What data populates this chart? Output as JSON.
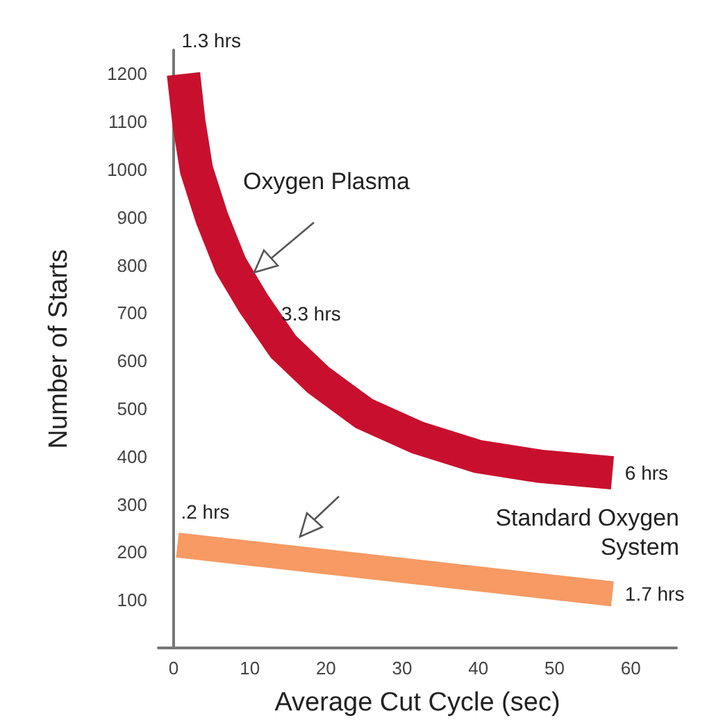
{
  "chart_data": {
    "type": "line",
    "xlabel": "Average Cut Cycle (sec)",
    "ylabel": "Number of Starts",
    "series": [
      {
        "name": "Oxygen Plasma",
        "color": "#c8102e",
        "x": [
          1.3,
          2,
          3,
          5,
          7.5,
          10.5,
          14.4,
          19,
          25,
          32,
          40,
          48,
          57.6
        ],
        "values": [
          1200,
          1100,
          1000,
          900,
          800,
          720,
          630,
          560,
          490,
          440,
          400,
          380,
          366
        ]
      },
      {
        "name": "Standard Oxygen System",
        "color": "#f79a63",
        "x": [
          0.5,
          57.6
        ],
        "values": [
          215,
          113
        ]
      }
    ],
    "annotations": [
      {
        "text": "1.3 hrs",
        "x": 1.3,
        "y": 1200
      },
      {
        "text": "3.3 hrs",
        "x": 14.4,
        "y": 630
      },
      {
        "text": "6 hrs",
        "x": 57.6,
        "y": 366
      },
      {
        "text": ".2 hrs",
        "x": 0.5,
        "y": 215
      },
      {
        "text": "1.7 hrs",
        "x": 57.6,
        "y": 113
      }
    ],
    "xlim": [
      -2,
      66
    ],
    "xticks": [
      0,
      10,
      20,
      30,
      40,
      50,
      60
    ],
    "ylim": [
      0,
      1250
    ],
    "yticks": [
      100,
      200,
      300,
      400,
      500,
      600,
      700,
      800,
      900,
      1000,
      1100,
      1200
    ],
    "grid": false,
    "legend": false,
    "marker": "none",
    "line_style": "solid"
  }
}
